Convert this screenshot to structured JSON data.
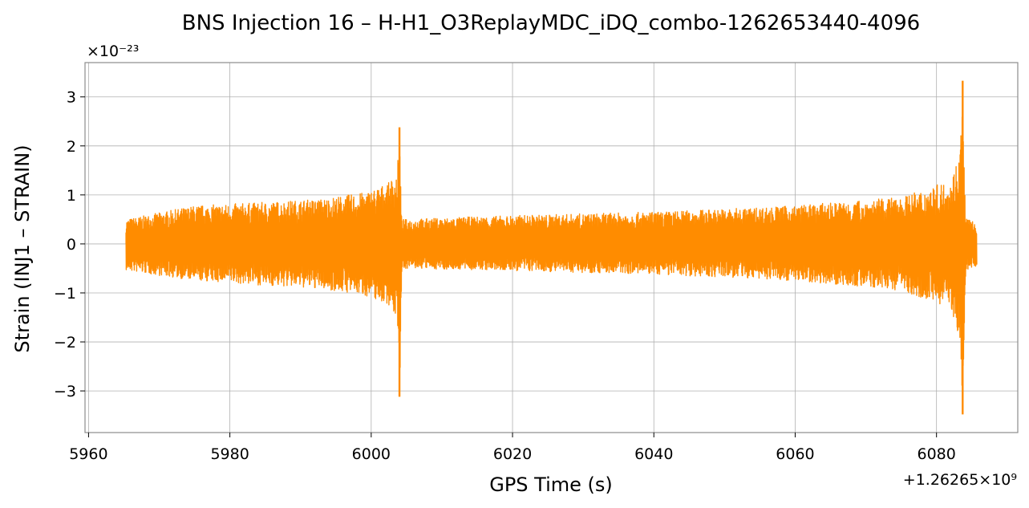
{
  "chart_data": {
    "type": "line",
    "title": "BNS Injection 16 – H-H1_O3ReplayMDC_iDQ_combo-1262653440-4096",
    "xlabel": "GPS Time (s)",
    "ylabel": "Strain (INJ1 – STRAIN)",
    "x_offset_label": "+1.26265×10⁹",
    "y_scale_label": "×10⁻²³",
    "xlim": [
      5959.5,
      6091.5
    ],
    "ylim": [
      -3.85,
      3.7
    ],
    "x_ticks": [
      {
        "value": 5960,
        "label": "5960"
      },
      {
        "value": 5980,
        "label": "5980"
      },
      {
        "value": 6000,
        "label": "6000"
      },
      {
        "value": 6020,
        "label": "6020"
      },
      {
        "value": 6040,
        "label": "6040"
      },
      {
        "value": 6060,
        "label": "6060"
      },
      {
        "value": 6080,
        "label": "6080"
      }
    ],
    "y_ticks": [
      {
        "value": 3,
        "label": "3"
      },
      {
        "value": 2,
        "label": "2"
      },
      {
        "value": 1,
        "label": "1"
      },
      {
        "value": 0,
        "label": "0"
      },
      {
        "value": -1,
        "label": "−1"
      },
      {
        "value": -2,
        "label": "−2"
      },
      {
        "value": -3,
        "label": "−3"
      }
    ],
    "grid": true,
    "series": [
      {
        "color": "#ff8c00",
        "envelope": [
          {
            "x": 5965.3,
            "upper": 0.5,
            "lower": -0.55
          },
          {
            "x": 5975,
            "upper": 0.78,
            "lower": -0.75
          },
          {
            "x": 5985,
            "upper": 0.85,
            "lower": -0.85
          },
          {
            "x": 5993,
            "upper": 0.92,
            "lower": -0.92
          },
          {
            "x": 5999,
            "upper": 1.05,
            "lower": -1.05
          },
          {
            "x": 6002.5,
            "upper": 1.25,
            "lower": -1.25
          },
          {
            "x": 6003.7,
            "upper": 1.5,
            "lower": -1.6
          },
          {
            "x": 6004.0,
            "upper": 2.38,
            "lower": -3.12
          },
          {
            "x": 6004.3,
            "upper": 0.5,
            "lower": -0.5
          },
          {
            "x": 6020,
            "upper": 0.58,
            "lower": -0.55
          },
          {
            "x": 6040,
            "upper": 0.65,
            "lower": -0.62
          },
          {
            "x": 6060,
            "upper": 0.78,
            "lower": -0.75
          },
          {
            "x": 6075,
            "upper": 0.95,
            "lower": -0.95
          },
          {
            "x": 6082,
            "upper": 1.3,
            "lower": -1.3
          },
          {
            "x": 6083.3,
            "upper": 1.9,
            "lower": -2.0
          },
          {
            "x": 6083.7,
            "upper": 3.33,
            "lower": -3.48
          },
          {
            "x": 6084.1,
            "upper": 0.55,
            "lower": -0.55
          },
          {
            "x": 6085.7,
            "upper": 0.4,
            "lower": -0.45
          }
        ]
      }
    ]
  }
}
